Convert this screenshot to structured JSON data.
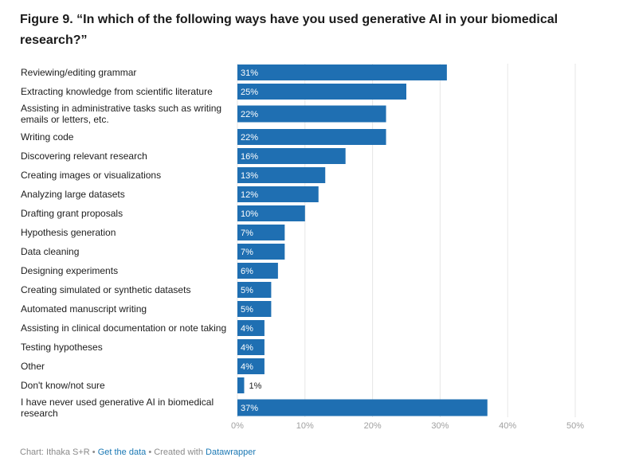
{
  "title": "Figure 9. “In which of the following ways have you used generative AI in your biomedical research?”",
  "footer": {
    "source": "Chart: Ithaka S+R",
    "sep1": " • ",
    "get_data": "Get the data",
    "sep2": " • Created with ",
    "tool": "Datawrapper"
  },
  "colors": {
    "bar": "#1f6fb2",
    "label_inside": "#ffffff",
    "label_outside": "#1d1d1d",
    "grid": "#e6e6e6",
    "tick": "#a0a0a0"
  },
  "chart_data": {
    "type": "bar",
    "orientation": "horizontal",
    "title": "Figure 9. “In which of the following ways have you used generative AI in your biomedical research?”",
    "xlim": [
      0,
      50
    ],
    "ticks": [
      0,
      10,
      20,
      30,
      40,
      50
    ],
    "tick_labels": [
      "0%",
      "10%",
      "20%",
      "30%",
      "40%",
      "50%"
    ],
    "grid": true,
    "categories": [
      "Reviewing/editing grammar",
      "Extracting knowledge from scientific literature",
      "Assisting in administrative tasks such as writing emails or letters, etc.",
      "Writing code",
      "Discovering relevant research",
      "Creating images or visualizations",
      "Analyzing large datasets",
      "Drafting grant proposals",
      "Hypothesis generation",
      "Data cleaning",
      "Designing experiments",
      "Creating simulated or synthetic datasets",
      "Automated manuscript writing",
      "Assisting in clinical documentation or note taking",
      "Testing hypotheses",
      "Other",
      "Don't know/not sure",
      "I have never used generative AI in biomedical research"
    ],
    "values": [
      31,
      25,
      22,
      22,
      16,
      13,
      12,
      10,
      7,
      7,
      6,
      5,
      5,
      4,
      4,
      4,
      1,
      37
    ],
    "value_labels": [
      "31%",
      "25%",
      "22%",
      "22%",
      "16%",
      "13%",
      "12%",
      "10%",
      "7%",
      "7%",
      "6%",
      "5%",
      "5%",
      "4%",
      "4%",
      "4%",
      "1%",
      "37%"
    ]
  }
}
